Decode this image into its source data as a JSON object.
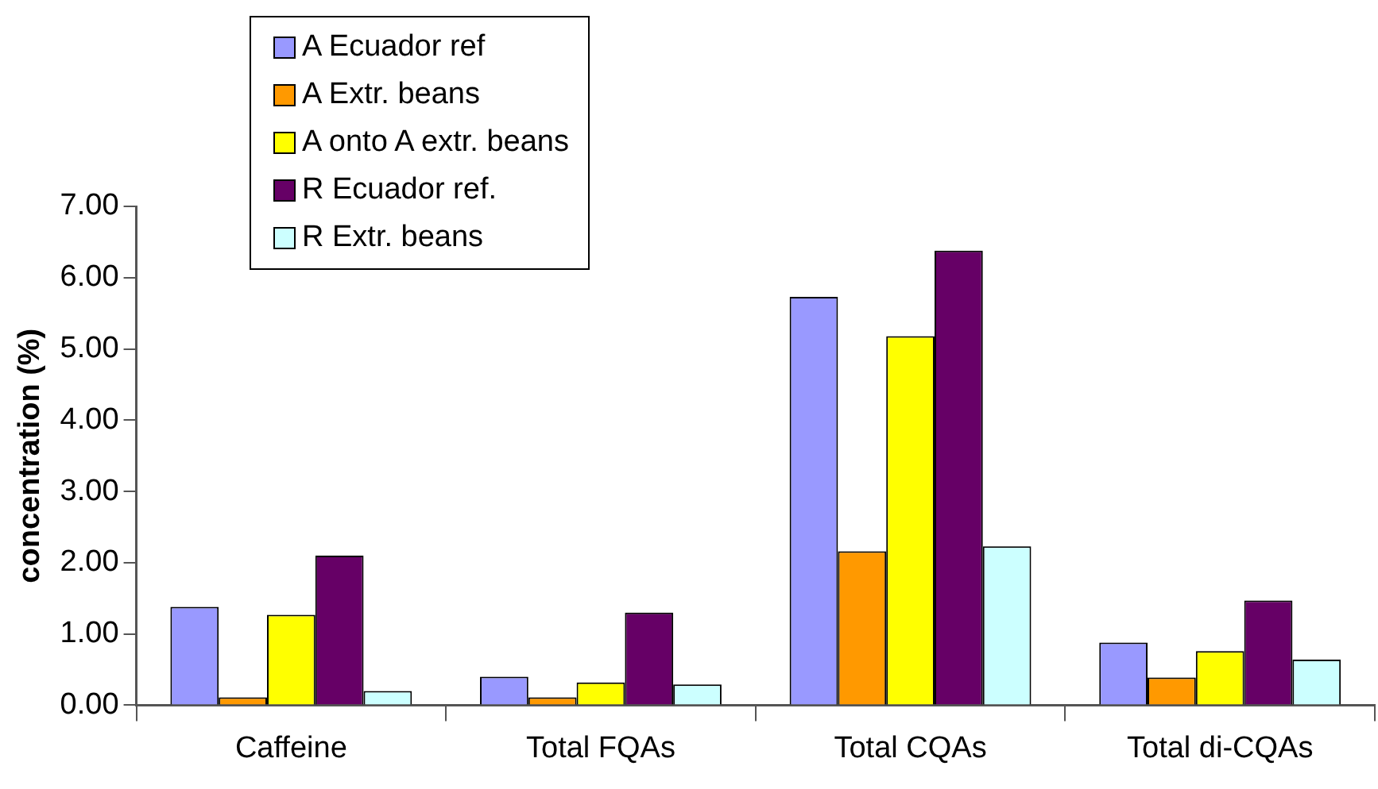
{
  "chart_data": {
    "type": "bar",
    "ylabel": "concentration (%)",
    "categories": [
      "Caffeine",
      "Total FQAs",
      "Total CQAs",
      "Total di-CQAs"
    ],
    "series": [
      {
        "name": "A Ecuador ref",
        "color": "#9999ff",
        "values": [
          1.38,
          0.4,
          5.73,
          0.88
        ]
      },
      {
        "name": "A Extr. beans",
        "color": "#ff9900",
        "values": [
          0.11,
          0.11,
          2.16,
          0.39
        ]
      },
      {
        "name": "A onto A extr. beans",
        "color": "#ffff00",
        "values": [
          1.27,
          0.32,
          5.18,
          0.76
        ]
      },
      {
        "name": "R Ecuador ref.",
        "color": "#660066",
        "values": [
          2.1,
          1.3,
          6.38,
          1.47
        ]
      },
      {
        "name": "R Extr. beans",
        "color": "#ccffff",
        "values": [
          0.2,
          0.29,
          2.23,
          0.64
        ]
      }
    ],
    "ylim": [
      0,
      7
    ],
    "yticks": [
      {
        "value": 0,
        "label": "0.00"
      },
      {
        "value": 1,
        "label": "1.00"
      },
      {
        "value": 2,
        "label": "2.00"
      },
      {
        "value": 3,
        "label": "3.00"
      },
      {
        "value": 4,
        "label": "4.00"
      },
      {
        "value": 5,
        "label": "5.00"
      },
      {
        "value": 6,
        "label": "6.00"
      },
      {
        "value": 7,
        "label": "7.00"
      }
    ],
    "grid": false,
    "legend": "top left"
  }
}
